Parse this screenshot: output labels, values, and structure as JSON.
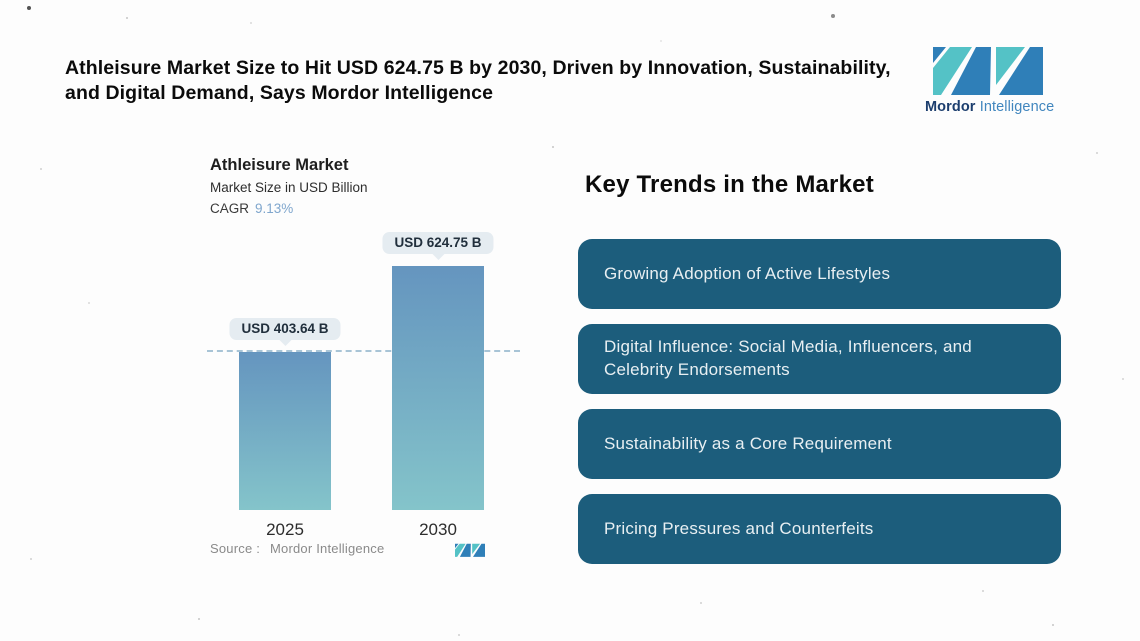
{
  "page": {
    "headline": "Athleisure Market Size to Hit USD 624.75 B by 2030, Driven by Innovation, Sustainability,\nand Digital Demand, Says Mordor Intelligence"
  },
  "brand": {
    "name_primary": "Mordor",
    "name_secondary": "Intelligence",
    "colors": {
      "teal": "#54c2c6",
      "blue": "#2f7fb8",
      "navy": "#1c3e6e",
      "lightblue": "#4186be"
    }
  },
  "chart": {
    "title": "Athleisure Market",
    "subtitle": "Market Size in USD Billion",
    "cagr_label": "CAGR",
    "cagr_value": "9.13%",
    "source_label": "Source :",
    "source_value": "Mordor Intelligence"
  },
  "chart_data": {
    "type": "bar",
    "title": "Athleisure Market",
    "subtitle": "Market Size in USD Billion",
    "cagr": "9.13%",
    "categories": [
      "2025",
      "2030"
    ],
    "values": [
      403.64,
      624.75
    ],
    "bar_value_labels": [
      "USD 403.64 B",
      "USD 624.75 B"
    ],
    "ylabel": "Market Size in USD Billion",
    "ylim": [
      0,
      624.75
    ],
    "reference_line": {
      "value": 403.64,
      "style": "dashed"
    },
    "bar_gradient": [
      "#6595bf",
      "#84c4ca"
    ],
    "grid": false,
    "legend": false,
    "source": "Mordor Intelligence"
  },
  "trends": {
    "heading": "Key Trends in the Market",
    "box_color": "#1c5d7c",
    "items": [
      {
        "label": "Growing Adoption of Active Lifestyles"
      },
      {
        "label": "Digital Influence: Social Media, Influencers, and Celebrity Endorsements"
      },
      {
        "label": "Sustainability as a Core Requirement"
      },
      {
        "label": "Pricing Pressures and Counterfeits"
      }
    ]
  }
}
